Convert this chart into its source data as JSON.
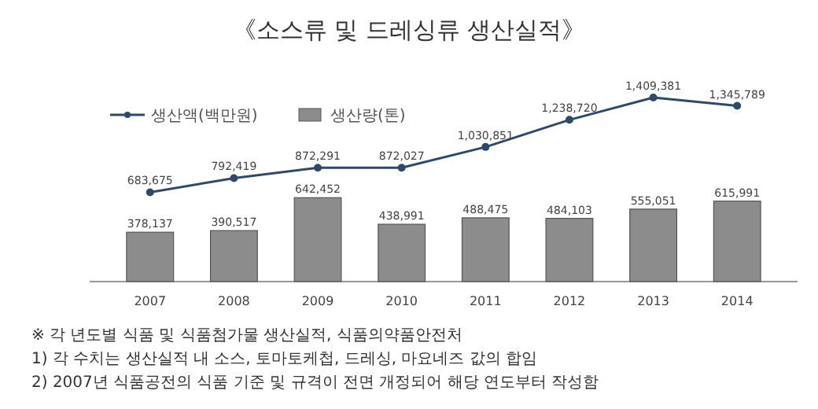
{
  "chart_data": {
    "type": "bar",
    "title": "《소스류 및 드레싱류 생산실적》",
    "categories": [
      "2007",
      "2008",
      "2009",
      "2010",
      "2011",
      "2012",
      "2013",
      "2014"
    ],
    "series": [
      {
        "name": "생산액(백만원)",
        "type": "line",
        "color": "#2e4a6b",
        "values": [
          683675,
          792419,
          872291,
          872027,
          1030851,
          1238720,
          1409381,
          1345789
        ],
        "value_labels": [
          "683,675",
          "792,419",
          "872,291",
          "872,027",
          "1,030,851",
          "1,238,720",
          "1,409,381",
          "1,345,789"
        ]
      },
      {
        "name": "생산량(톤)",
        "color": "#8c8c8c",
        "values": [
          378137,
          390517,
          642452,
          438991,
          488475,
          484103,
          555051,
          615991
        ],
        "value_labels": [
          "378,137",
          "390,517",
          "642,452",
          "438,991",
          "488,475",
          "484,103",
          "555,051",
          "615,991"
        ]
      }
    ],
    "legend": "top left",
    "marker": "circle",
    "line_style": "solid",
    "tick_labels": "x",
    "annotations": [
      "※ 각 년도별 식품 및 식품첨가물 생산실적, 식품의약품안전처",
      "1) 각 수치는 생산실적 내 소스, 토마토케첩, 드레싱, 마요네즈 값의 합임",
      "2) 2007년 식품공전의 식품 기준 및 규격이 전면 개정되어 해당 연도부터 작성함"
    ]
  }
}
